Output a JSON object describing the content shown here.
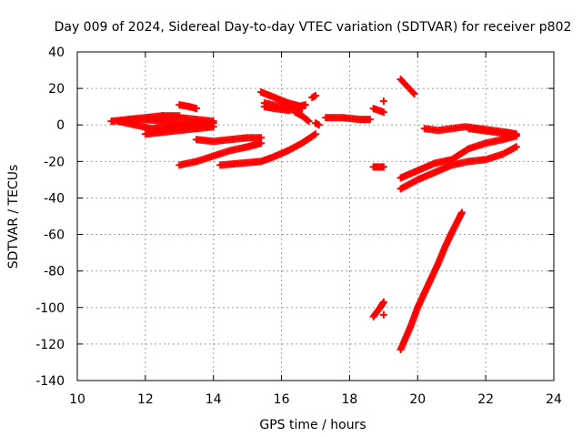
{
  "chart_data": {
    "type": "scatter",
    "title": "Day 009 of 2024, Sidereal Day-to-day VTEC variation (SDTVAR) for receiver p802",
    "xlabel": "GPS time / hours",
    "ylabel": "SDTVAR / TECUs",
    "xlim": [
      10,
      24
    ],
    "ylim": [
      -140,
      40
    ],
    "x_ticks": [
      10,
      12,
      14,
      16,
      18,
      20,
      22,
      24
    ],
    "y_ticks": [
      -140,
      -120,
      -100,
      -80,
      -60,
      -40,
      -20,
      0,
      20,
      40
    ],
    "grid": true,
    "marker": "+",
    "series_color": "#ff0000",
    "tracks": [
      [
        [
          11.0,
          2
        ],
        [
          11.5,
          3
        ],
        [
          12.0,
          4
        ],
        [
          12.5,
          5
        ],
        [
          13.0,
          5
        ]
      ],
      [
        [
          11.5,
          3
        ],
        [
          12.0,
          3
        ],
        [
          12.5,
          2
        ],
        [
          13.0,
          1
        ],
        [
          13.5,
          0
        ]
      ],
      [
        [
          11.2,
          2
        ],
        [
          11.7,
          0
        ],
        [
          12.2,
          -2
        ],
        [
          12.7,
          -1
        ],
        [
          13.2,
          0
        ],
        [
          13.7,
          1
        ],
        [
          14.0,
          1
        ]
      ],
      [
        [
          12.0,
          -5
        ],
        [
          12.5,
          -4
        ],
        [
          13.0,
          -3
        ],
        [
          13.5,
          -2
        ],
        [
          14.0,
          -1
        ]
      ],
      [
        [
          12.5,
          5
        ],
        [
          13.0,
          4
        ],
        [
          13.5,
          3
        ],
        [
          14.0,
          2
        ]
      ],
      [
        [
          13.0,
          11
        ],
        [
          13.3,
          10
        ],
        [
          13.5,
          9
        ]
      ],
      [
        [
          13.0,
          -22
        ],
        [
          13.5,
          -20
        ],
        [
          14.0,
          -17
        ],
        [
          14.5,
          -14
        ],
        [
          15.0,
          -12
        ],
        [
          15.4,
          -10
        ]
      ],
      [
        [
          13.5,
          -8
        ],
        [
          14.0,
          -9
        ],
        [
          14.5,
          -8
        ],
        [
          15.0,
          -7
        ],
        [
          15.4,
          -7
        ]
      ],
      [
        [
          14.2,
          -22
        ],
        [
          14.8,
          -21
        ],
        [
          15.4,
          -20
        ],
        [
          15.7,
          -18
        ],
        [
          16.2,
          -14
        ],
        [
          16.6,
          -10
        ],
        [
          17.0,
          -5
        ]
      ],
      [
        [
          15.4,
          18
        ],
        [
          15.8,
          15
        ],
        [
          16.2,
          12
        ],
        [
          16.6,
          10
        ]
      ],
      [
        [
          15.5,
          10
        ],
        [
          15.8,
          9
        ],
        [
          16.2,
          8
        ],
        [
          16.6,
          9
        ]
      ],
      [
        [
          15.5,
          12
        ],
        [
          16.0,
          10
        ],
        [
          16.5,
          10
        ],
        [
          16.7,
          11
        ]
      ],
      [
        [
          16.4,
          7
        ],
        [
          16.6,
          5
        ],
        [
          16.8,
          2
        ]
      ],
      [
        [
          16.9,
          15
        ],
        [
          17.0,
          16
        ]
      ],
      [
        [
          17.0,
          1
        ],
        [
          17.1,
          0
        ]
      ],
      [
        [
          17.3,
          4
        ],
        [
          17.8,
          4
        ],
        [
          18.3,
          3
        ],
        [
          18.6,
          3
        ]
      ],
      [
        [
          18.7,
          9
        ],
        [
          19.0,
          7
        ]
      ],
      [
        [
          18.7,
          -23
        ],
        [
          19.0,
          -23
        ]
      ],
      [
        [
          19.0,
          13
        ]
      ],
      [
        [
          19.5,
          25
        ],
        [
          19.7,
          21
        ],
        [
          19.9,
          17
        ]
      ],
      [
        [
          20.2,
          -2
        ],
        [
          20.6,
          -3
        ],
        [
          21.0,
          -2
        ],
        [
          21.4,
          -1
        ],
        [
          21.8,
          -2
        ],
        [
          22.2,
          -3
        ],
        [
          22.6,
          -4
        ],
        [
          22.9,
          -5
        ]
      ],
      [
        [
          21.5,
          -2
        ],
        [
          21.9,
          -3
        ],
        [
          22.3,
          -4
        ],
        [
          22.7,
          -5
        ],
        [
          22.9,
          -6
        ]
      ],
      [
        [
          19.5,
          -29
        ],
        [
          20.0,
          -25
        ],
        [
          20.5,
          -21
        ],
        [
          21.0,
          -19
        ],
        [
          21.5,
          -13
        ],
        [
          22.0,
          -10
        ],
        [
          22.5,
          -8
        ],
        [
          22.9,
          -6
        ]
      ],
      [
        [
          19.5,
          -35
        ],
        [
          20.0,
          -30
        ],
        [
          20.5,
          -26
        ],
        [
          21.0,
          -22
        ],
        [
          21.5,
          -20
        ],
        [
          22.0,
          -19
        ],
        [
          22.5,
          -16
        ],
        [
          22.9,
          -12
        ]
      ],
      [
        [
          19.5,
          -123
        ],
        [
          19.8,
          -110
        ],
        [
          20.0,
          -100
        ],
        [
          20.3,
          -88
        ],
        [
          20.6,
          -76
        ],
        [
          20.8,
          -67
        ],
        [
          21.0,
          -59
        ],
        [
          21.3,
          -48
        ]
      ],
      [
        [
          18.7,
          -105
        ],
        [
          18.9,
          -100
        ],
        [
          19.0,
          -97
        ]
      ],
      [
        [
          19.0,
          -104
        ]
      ]
    ]
  }
}
